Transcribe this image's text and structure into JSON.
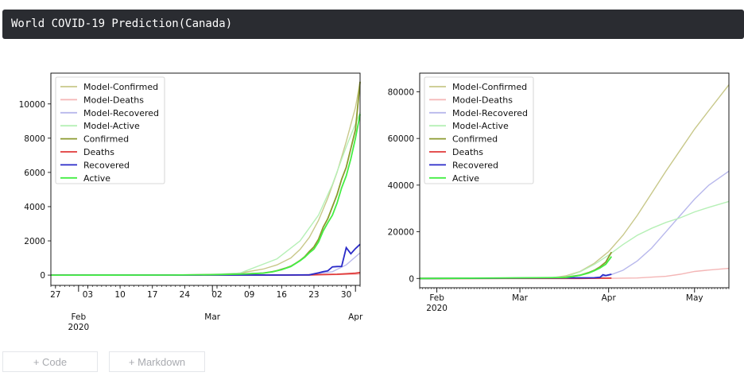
{
  "header": {
    "title": "World COVID-19 Prediction(Canada)"
  },
  "toolbar": {
    "add_code_label": "+ Code",
    "add_markdown_label": "+ Markdown"
  },
  "chart_data": [
    {
      "type": "line",
      "title": "",
      "xlabel": "",
      "ylabel": "",
      "ylim": [
        -600,
        11800
      ],
      "x_ticks": {
        "minor": [
          "27",
          "03",
          "10",
          "17",
          "24",
          "02",
          "09",
          "16",
          "23",
          "30"
        ],
        "major": [
          {
            "label": "Feb",
            "sublabel": "2020"
          },
          {
            "label": "Mar",
            "sublabel": ""
          },
          {
            "label": "Apr",
            "sublabel": ""
          }
        ]
      },
      "y_ticks": [
        "0",
        "2000",
        "4000",
        "6000",
        "8000",
        "10000"
      ],
      "legend": {
        "position": "top-left",
        "entries": [
          "Model-Confirmed",
          "Model-Deaths",
          "Model-Recovered",
          "Model-Active",
          "Confirmed",
          "Deaths",
          "Recovered",
          "Active"
        ]
      },
      "colors": {
        "Model-Confirmed": "#c8c88a",
        "Model-Deaths": "#f4b6b6",
        "Model-Recovered": "#b8b8ec",
        "Model-Active": "#b6f0b6",
        "Confirmed": "#8b9a2f",
        "Deaths": "#e03a3a",
        "Recovered": "#2a2ac8",
        "Active": "#44ee44"
      },
      "x_day_range": [
        -6,
        61
      ],
      "series": [
        {
          "name": "Model-Confirmed",
          "x": [
            25,
            30,
            35,
            40,
            43,
            46,
            48,
            50,
            52,
            54,
            56,
            58,
            60,
            61
          ],
          "y": [
            0,
            30,
            120,
            350,
            600,
            1000,
            1500,
            2200,
            3200,
            4500,
            6000,
            7800,
            9800,
            11300
          ]
        },
        {
          "name": "Model-Deaths",
          "x": [
            40,
            50,
            55,
            61
          ],
          "y": [
            0,
            5,
            20,
            60
          ]
        },
        {
          "name": "Model-Recovered",
          "x": [
            40,
            50,
            55,
            58,
            61
          ],
          "y": [
            0,
            30,
            200,
            600,
            1300
          ]
        },
        {
          "name": "Model-Active",
          "x": [
            25,
            35,
            43,
            48,
            52,
            55,
            58,
            61
          ],
          "y": [
            0,
            120,
            950,
            2000,
            3500,
            5300,
            7500,
            9500
          ]
        },
        {
          "name": "Confirmed",
          "x": [
            -6,
            20,
            30,
            35,
            40,
            42,
            43,
            44,
            45,
            46,
            47,
            48,
            49,
            50,
            51,
            52,
            53,
            54,
            55,
            56,
            57,
            58,
            59,
            60,
            61
          ],
          "y": [
            0,
            5,
            25,
            60,
            120,
            200,
            260,
            340,
            420,
            520,
            680,
            860,
            1070,
            1380,
            1650,
            2100,
            2800,
            3300,
            4000,
            4700,
            5600,
            6300,
            7400,
            8500,
            11300
          ]
        },
        {
          "name": "Deaths",
          "x": [
            -6,
            45,
            50,
            53,
            56,
            58,
            60,
            61
          ],
          "y": [
            0,
            2,
            15,
            30,
            50,
            80,
            110,
            150
          ]
        },
        {
          "name": "Recovered",
          "x": [
            -6,
            45,
            48,
            50,
            52,
            53,
            54,
            55,
            56,
            57,
            58,
            59,
            60,
            61
          ],
          "y": [
            0,
            5,
            10,
            15,
            130,
            200,
            250,
            480,
            500,
            510,
            1600,
            1250,
            1550,
            1800
          ]
        },
        {
          "name": "Active",
          "x": [
            -6,
            20,
            30,
            35,
            40,
            42,
            44,
            46,
            48,
            49,
            50,
            51,
            52,
            53,
            54,
            55,
            56,
            57,
            58,
            59,
            60,
            61
          ],
          "y": [
            0,
            5,
            25,
            55,
            110,
            190,
            320,
            500,
            840,
            1040,
            1300,
            1520,
            1930,
            2580,
            3060,
            3500,
            4200,
            5100,
            5800,
            6800,
            8000,
            9400
          ]
        }
      ]
    },
    {
      "type": "line",
      "title": "",
      "xlabel": "",
      "ylabel": "",
      "ylim": [
        -4000,
        88000
      ],
      "x_ticks": {
        "major": [
          {
            "label": "Feb",
            "sublabel": "2020"
          },
          {
            "label": "Mar",
            "sublabel": ""
          },
          {
            "label": "Apr",
            "sublabel": ""
          },
          {
            "label": "May",
            "sublabel": ""
          }
        ]
      },
      "y_ticks": [
        "0",
        "20000",
        "40000",
        "60000",
        "80000"
      ],
      "legend": {
        "position": "top-left",
        "entries": [
          "Model-Confirmed",
          "Model-Deaths",
          "Model-Recovered",
          "Model-Active",
          "Confirmed",
          "Deaths",
          "Recovered",
          "Active"
        ]
      },
      "colors": {
        "Model-Confirmed": "#c8c88a",
        "Model-Deaths": "#f4b6b6",
        "Model-Recovered": "#b8b8ec",
        "Model-Active": "#b6f0b6",
        "Confirmed": "#8b9a2f",
        "Deaths": "#e03a3a",
        "Recovered": "#2a2ac8",
        "Active": "#44ee44"
      },
      "x_day_range": [
        -6,
        102
      ],
      "series": [
        {
          "name": "Model-Confirmed",
          "x": [
            -6,
            30,
            40,
            45,
            50,
            55,
            60,
            65,
            70,
            75,
            80,
            85,
            90,
            95,
            102
          ],
          "y": [
            0,
            0,
            300,
            1100,
            3000,
            6500,
            11500,
            18500,
            27000,
            36500,
            46000,
            55000,
            64000,
            72000,
            83000
          ]
        },
        {
          "name": "Model-Deaths",
          "x": [
            -6,
            55,
            70,
            80,
            85,
            90,
            95,
            102
          ],
          "y": [
            0,
            0,
            200,
            900,
            1800,
            3000,
            3600,
            4300
          ]
        },
        {
          "name": "Model-Recovered",
          "x": [
            -6,
            50,
            55,
            60,
            65,
            70,
            75,
            80,
            85,
            90,
            95,
            102
          ],
          "y": [
            0,
            0,
            300,
            1200,
            3500,
            7500,
            13000,
            20000,
            27000,
            34000,
            40000,
            46000
          ]
        },
        {
          "name": "Model-Active",
          "x": [
            -6,
            35,
            45,
            50,
            55,
            60,
            65,
            70,
            75,
            80,
            85,
            90,
            95,
            102
          ],
          "y": [
            0,
            0,
            800,
            2800,
            6000,
            10000,
            14500,
            18500,
            21500,
            24000,
            26000,
            28500,
            30500,
            33000
          ]
        },
        {
          "name": "Confirmed",
          "x": [
            -6,
            40,
            45,
            50,
            53,
            55,
            57,
            59,
            61
          ],
          "y": [
            0,
            100,
            500,
            1400,
            2500,
            3500,
            5000,
            7000,
            11300
          ]
        },
        {
          "name": "Deaths",
          "x": [
            -6,
            50,
            61
          ],
          "y": [
            0,
            15,
            150
          ]
        },
        {
          "name": "Recovered",
          "x": [
            -6,
            55,
            57,
            58,
            59,
            60,
            61
          ],
          "y": [
            0,
            300,
            480,
            1600,
            1250,
            1550,
            1800
          ]
        },
        {
          "name": "Active",
          "x": [
            -6,
            45,
            50,
            53,
            55,
            57,
            59,
            61
          ],
          "y": [
            0,
            400,
            1300,
            2300,
            3300,
            4500,
            6100,
            9400
          ]
        }
      ]
    }
  ]
}
